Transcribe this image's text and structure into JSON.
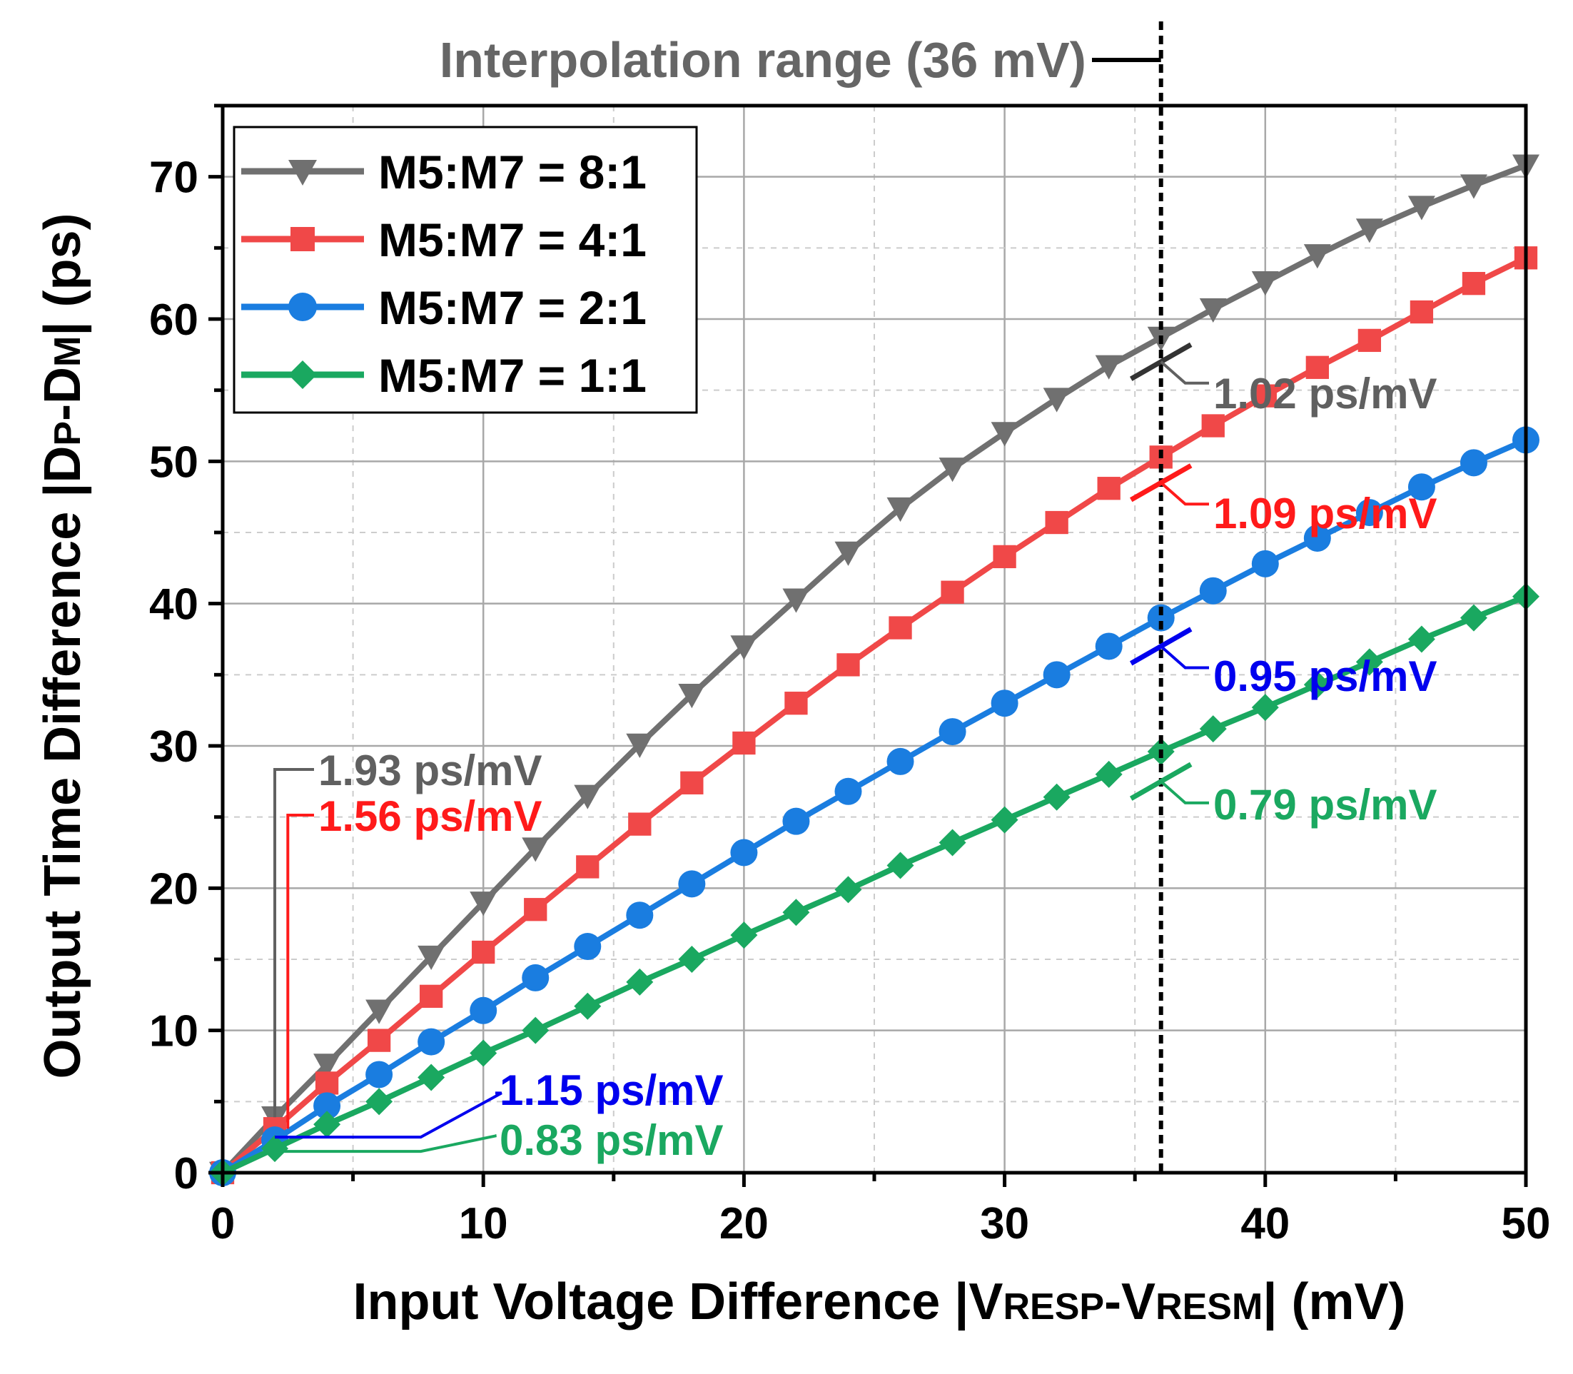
{
  "chart_data": {
    "type": "line",
    "title": "",
    "xlabel": {
      "main": "Input Voltage Difference |V",
      "sub1": "RESP",
      "mid": "-V",
      "sub2": "RESM",
      "tail": "| (mV)"
    },
    "ylabel": {
      "main": "Output Time Difference |D",
      "sub1": "P",
      "mid": "-D",
      "sub2": "M",
      "tail": "| (ps)"
    },
    "xlim": [
      0,
      50
    ],
    "ylim": [
      0,
      75
    ],
    "xticks": [
      0,
      10,
      20,
      30,
      40,
      50
    ],
    "yticks": [
      0,
      10,
      20,
      30,
      40,
      50,
      60,
      70
    ],
    "grid": true,
    "legend_position": "top-left",
    "x": [
      0,
      2,
      4,
      6,
      8,
      10,
      12,
      14,
      16,
      18,
      20,
      22,
      24,
      26,
      28,
      30,
      32,
      34,
      36,
      38,
      40,
      42,
      44,
      46,
      48,
      50
    ],
    "series": [
      {
        "name": "M5:M7 = 8:1",
        "color": "#707070",
        "marker": "triangle-down",
        "values": [
          0,
          3.9,
          7.6,
          11.4,
          15.2,
          19.0,
          22.8,
          26.5,
          30.1,
          33.6,
          37.0,
          40.3,
          43.6,
          46.7,
          49.5,
          52.0,
          54.4,
          56.7,
          58.7,
          60.7,
          62.6,
          64.5,
          66.3,
          67.9,
          69.4,
          70.8
        ]
      },
      {
        "name": "M5:M7 = 4:1",
        "color": "#f04848",
        "marker": "square",
        "values": [
          0,
          3.1,
          6.3,
          9.3,
          12.4,
          15.5,
          18.5,
          21.5,
          24.5,
          27.4,
          30.2,
          33.0,
          35.7,
          38.3,
          40.8,
          43.3,
          45.7,
          48.1,
          50.3,
          52.5,
          54.6,
          56.6,
          58.5,
          60.5,
          62.5,
          64.3
        ]
      },
      {
        "name": "M5:M7 = 2:1",
        "color": "#1a7de0",
        "marker": "circle",
        "values": [
          0,
          2.3,
          4.7,
          6.9,
          9.2,
          11.4,
          13.7,
          15.9,
          18.1,
          20.3,
          22.5,
          24.7,
          26.8,
          28.9,
          31.0,
          33.0,
          35.0,
          37.0,
          39.0,
          40.9,
          42.8,
          44.6,
          46.4,
          48.2,
          49.9,
          51.5
        ]
      },
      {
        "name": "M5:M7 = 1:1",
        "color": "#1aa860",
        "marker": "diamond",
        "values": [
          0,
          1.7,
          3.4,
          5.0,
          6.7,
          8.4,
          10.0,
          11.7,
          13.4,
          15.0,
          16.7,
          18.3,
          19.9,
          21.6,
          23.2,
          24.8,
          26.4,
          28.0,
          29.6,
          31.2,
          32.7,
          34.3,
          35.9,
          37.5,
          39.0,
          40.5
        ]
      }
    ],
    "vline": {
      "x": 36,
      "label": "Interpolation range (36 mV)"
    },
    "annotations": [
      {
        "text": "1.93 ps/mV",
        "color": "#606060"
      },
      {
        "text": "1.56 ps/mV",
        "color": "#ff1a1a"
      },
      {
        "text": "1.15 ps/mV",
        "color": "#0000ee"
      },
      {
        "text": "0.83 ps/mV",
        "color": "#1aa860"
      },
      {
        "text": "1.02 ps/mV",
        "color": "#606060"
      },
      {
        "text": "1.09 ps/mV",
        "color": "#ff1a1a"
      },
      {
        "text": "0.95 ps/mV",
        "color": "#0000ee"
      },
      {
        "text": "0.79 ps/mV",
        "color": "#1aa860"
      }
    ]
  }
}
